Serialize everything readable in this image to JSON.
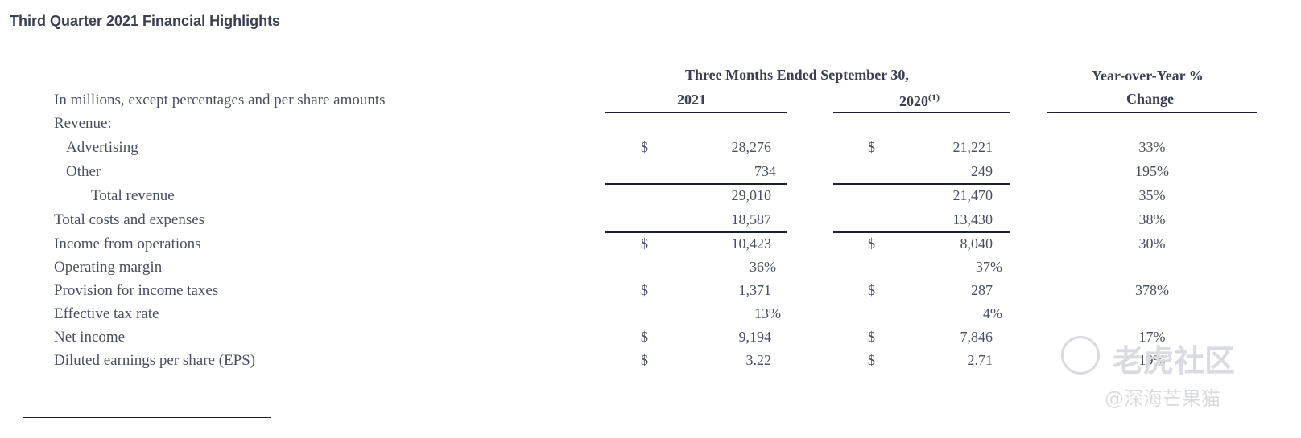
{
  "title": "Third Quarter 2021 Financial Highlights",
  "header": {
    "period": "Three Months Ended September 30,",
    "col_2021": "2021",
    "col_2020": "2020",
    "col_2020_note": "(1)",
    "yoy_line1": "Year-over-Year %",
    "yoy_line2": "Change",
    "units_note": "In millions, except percentages and per share amounts"
  },
  "rows": [
    {
      "label": "Revenue:"
    },
    {
      "label": "Advertising",
      "cur2021": "$",
      "v2021": "28,276",
      "cur2020": "$",
      "v2020": "21,221",
      "yoy": "33%"
    },
    {
      "label": "Other",
      "v2021": "734",
      "v2020": "249",
      "yoy": "195%"
    },
    {
      "label": "Total revenue",
      "v2021": "29,010",
      "v2020": "21,470",
      "yoy": "35%"
    },
    {
      "label": "Total costs and expenses",
      "v2021": "18,587",
      "v2020": "13,430",
      "yoy": "38%"
    },
    {
      "label": "Income from operations",
      "cur2021": "$",
      "v2021": "10,423",
      "cur2020": "$",
      "v2020": "8,040",
      "yoy": "30%"
    },
    {
      "label": "Operating margin",
      "v2021": "36%",
      "v2020": "37%"
    },
    {
      "label": "Provision for income taxes",
      "cur2021": "$",
      "v2021": "1,371",
      "cur2020": "$",
      "v2020": "287",
      "yoy": "378%"
    },
    {
      "label": "Effective tax rate",
      "v2021": "13%",
      "v2020": "4%"
    },
    {
      "label": "Net income",
      "cur2021": "$",
      "v2021": "9,194",
      "cur2020": "$",
      "v2020": "7,846",
      "yoy": "17%"
    },
    {
      "label": "Diluted earnings per share (EPS)",
      "cur2021": "$",
      "v2021": "3.22",
      "cur2020": "$",
      "v2020": "2.71",
      "yoy": "19%"
    }
  ],
  "watermark": {
    "line1": "老虎社区",
    "line2": "@深海芒果猫"
  }
}
